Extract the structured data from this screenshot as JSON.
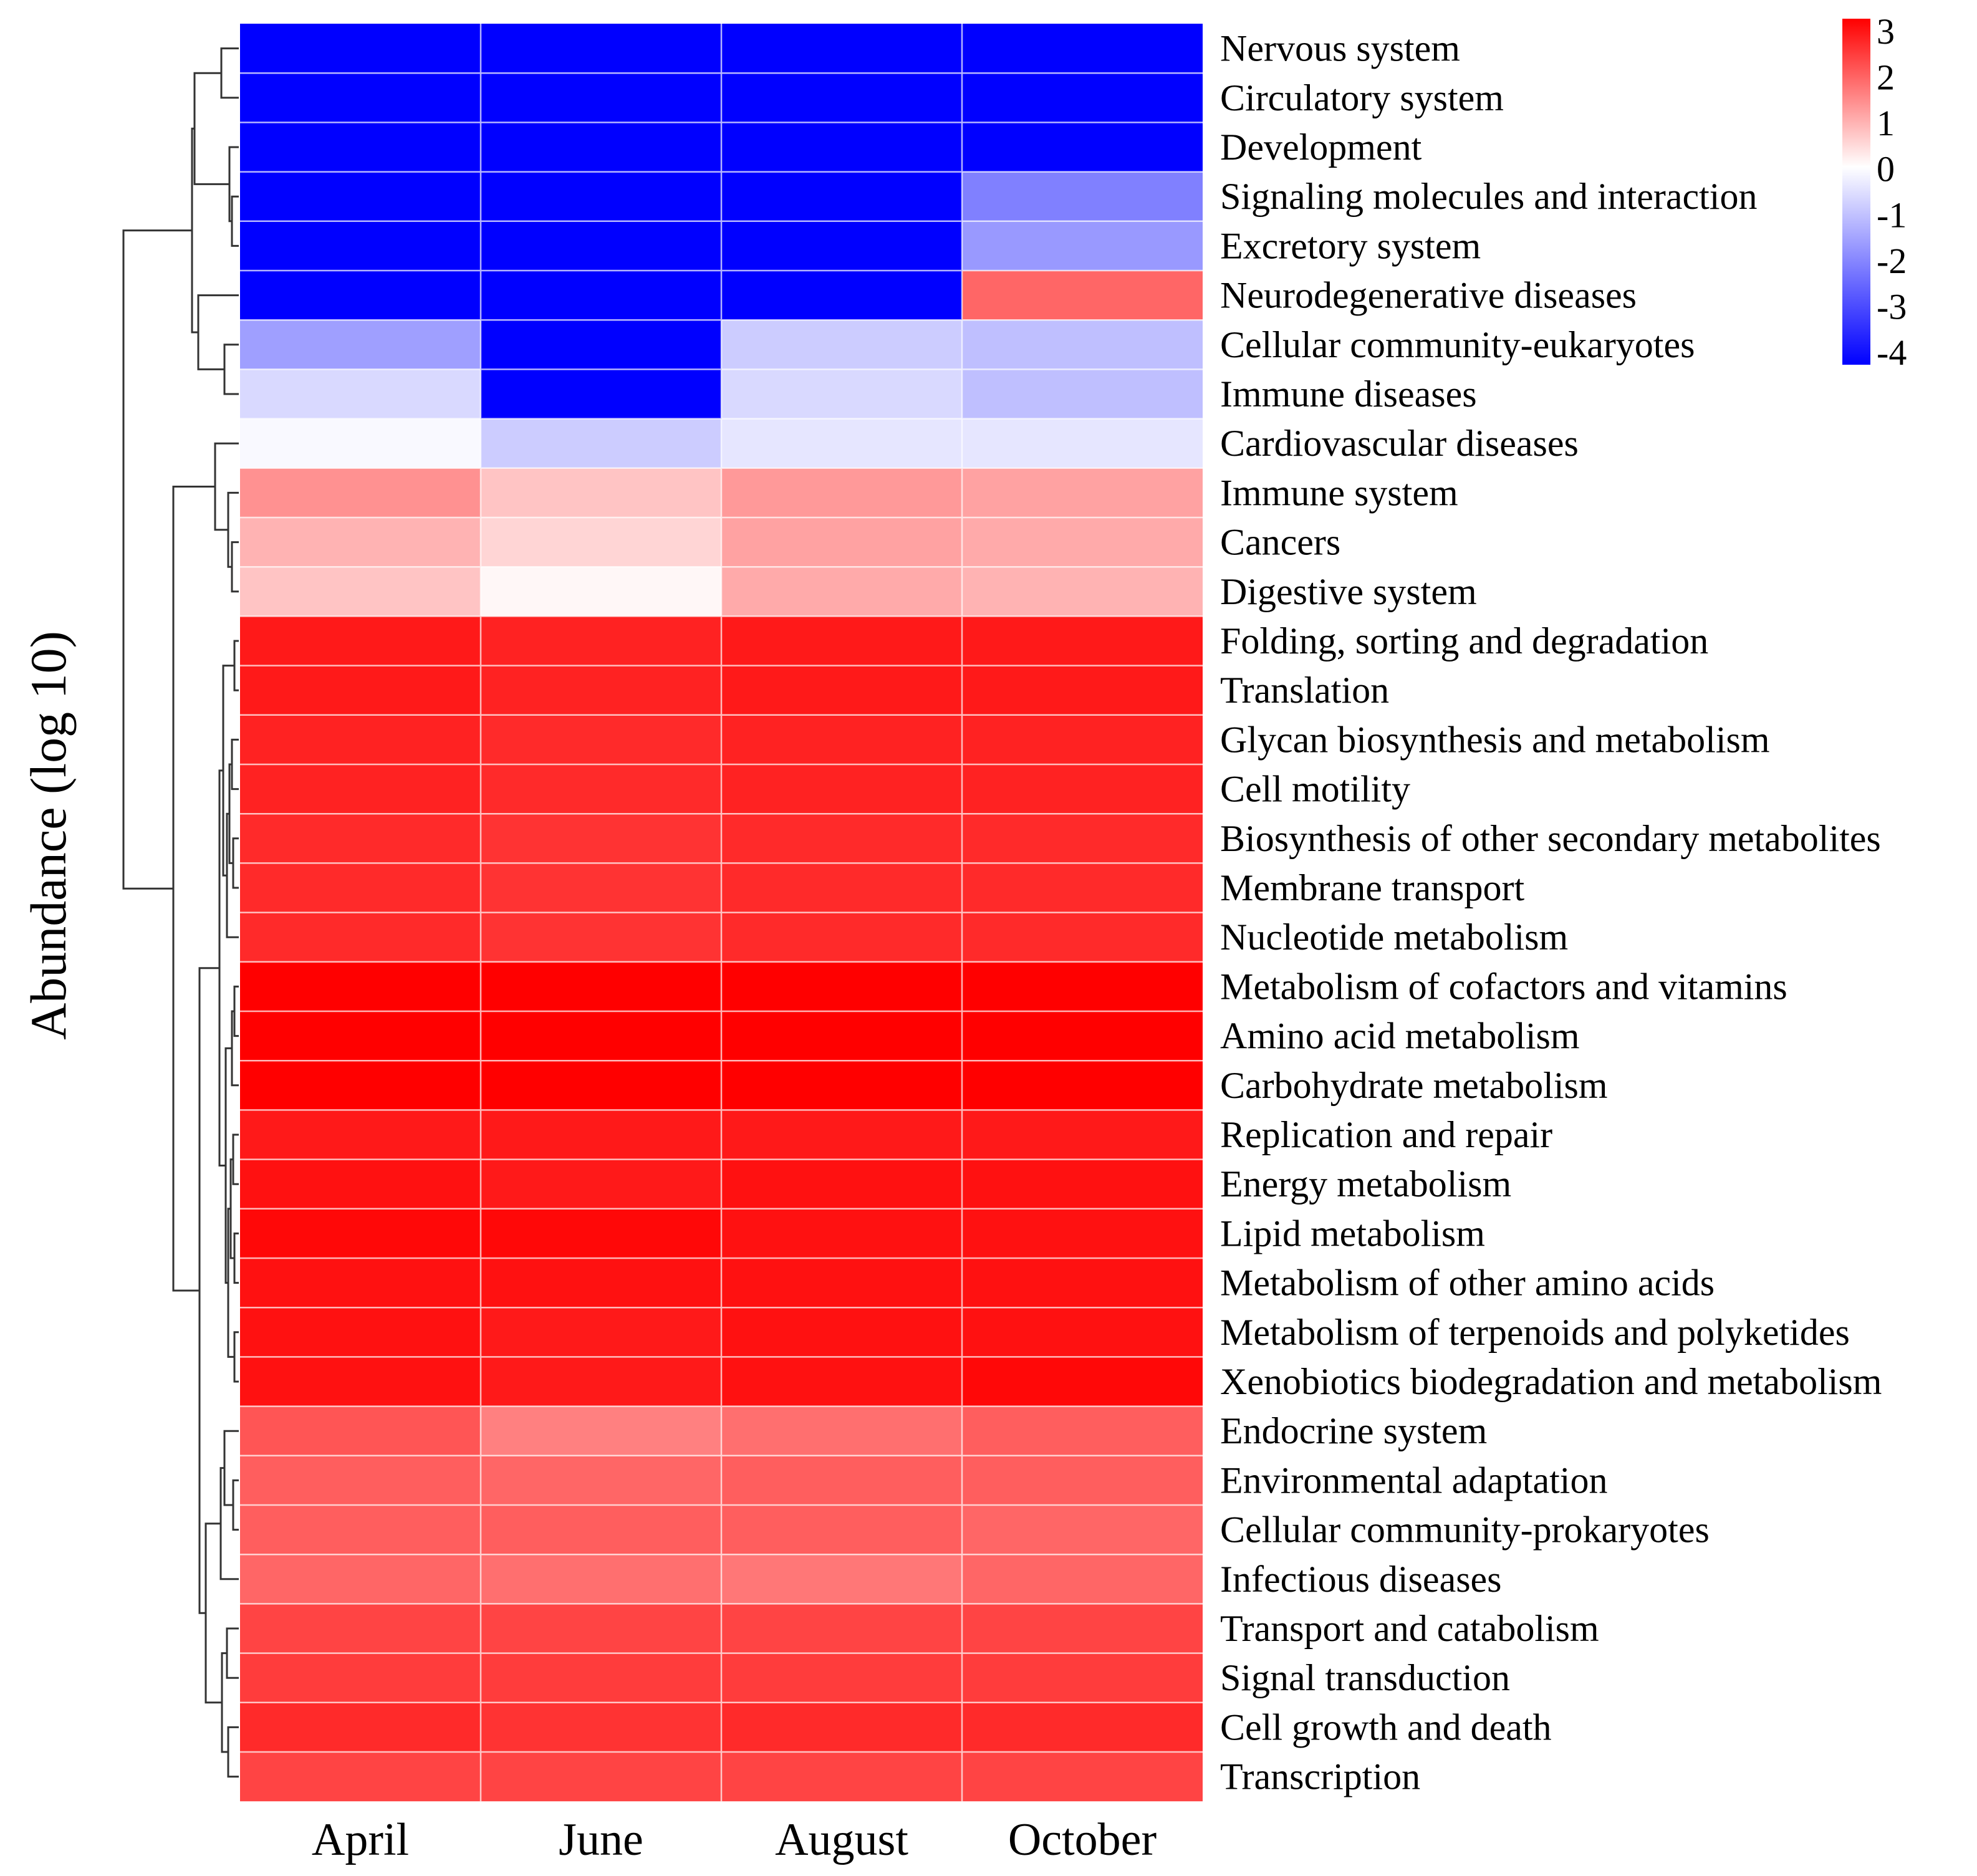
{
  "chart_data": {
    "type": "heatmap",
    "title": "",
    "ylabel": "Abundance (log 10)",
    "xlabel": "",
    "columns": [
      "April",
      "June",
      "August",
      "October"
    ],
    "rows": [
      "Nervous system",
      "Circulatory system",
      "Development",
      "Signaling molecules and interaction",
      "Excretory system",
      "Neurodegenerative diseases",
      "Cellular community-eukaryotes",
      "Immune diseases",
      "Cardiovascular diseases",
      "Immune system",
      "Cancers",
      "Digestive system",
      "Folding, sorting and degradation",
      "Translation",
      "Glycan biosynthesis and metabolism",
      "Cell motility",
      "Biosynthesis of other secondary metabolites",
      "Membrane transport",
      "Nucleotide metabolism",
      "Metabolism of cofactors and vitamins",
      "Amino acid metabolism",
      "Carbohydrate metabolism",
      "Replication and repair",
      "Energy metabolism",
      "Lipid metabolism",
      "Metabolism of other amino acids",
      "Metabolism of terpenoids and polyketides",
      "Xenobiotics biodegradation and metabolism",
      "Endocrine system",
      "Environmental adaptation",
      "Cellular community-prokaryotes",
      "Infectious diseases",
      "Transport and catabolism",
      "Signal transduction",
      "Cell growth and death",
      "Transcription"
    ],
    "values": [
      [
        -4,
        -4,
        -4,
        -4
      ],
      [
        -4,
        -4,
        -4,
        -4
      ],
      [
        -4,
        -4,
        -4,
        -4
      ],
      [
        -4,
        -4,
        -4,
        -2.0
      ],
      [
        -4,
        -4,
        -4,
        -1.6
      ],
      [
        -4,
        -4,
        -4,
        1.8
      ],
      [
        -1.5,
        -4,
        -0.8,
        -1.0
      ],
      [
        -0.6,
        -4,
        -0.6,
        -1.0
      ],
      [
        -0.1,
        -0.8,
        -0.4,
        -0.4
      ],
      [
        1.3,
        0.7,
        1.2,
        1.1
      ],
      [
        0.9,
        0.5,
        1.1,
        1.0
      ],
      [
        0.7,
        0.1,
        1.0,
        0.9
      ],
      [
        2.7,
        2.6,
        2.7,
        2.7
      ],
      [
        2.7,
        2.6,
        2.7,
        2.7
      ],
      [
        2.6,
        2.5,
        2.6,
        2.6
      ],
      [
        2.6,
        2.5,
        2.6,
        2.6
      ],
      [
        2.5,
        2.4,
        2.5,
        2.5
      ],
      [
        2.5,
        2.4,
        2.5,
        2.5
      ],
      [
        2.5,
        2.4,
        2.5,
        2.5
      ],
      [
        3.0,
        3.0,
        3.0,
        3.0
      ],
      [
        3.0,
        3.0,
        3.0,
        3.0
      ],
      [
        3.0,
        3.0,
        3.0,
        3.0
      ],
      [
        2.7,
        2.7,
        2.7,
        2.7
      ],
      [
        2.8,
        2.7,
        2.8,
        2.8
      ],
      [
        2.9,
        2.9,
        2.8,
        2.8
      ],
      [
        2.8,
        2.8,
        2.8,
        2.8
      ],
      [
        2.8,
        2.7,
        2.8,
        2.8
      ],
      [
        2.8,
        2.7,
        2.8,
        2.9
      ],
      [
        2.0,
        1.5,
        1.7,
        1.9
      ],
      [
        1.9,
        1.8,
        1.9,
        1.9
      ],
      [
        1.9,
        1.9,
        1.9,
        1.8
      ],
      [
        1.8,
        1.7,
        1.6,
        1.8
      ],
      [
        2.2,
        2.2,
        2.2,
        2.2
      ],
      [
        2.3,
        2.3,
        2.3,
        2.3
      ],
      [
        2.5,
        2.4,
        2.5,
        2.5
      ],
      [
        2.2,
        2.2,
        2.2,
        2.2
      ]
    ],
    "color_scale": {
      "min": -4,
      "max": 3,
      "ticks": [
        "3",
        "2",
        "1",
        "0",
        "-1",
        "-2",
        "-3",
        "-4"
      ],
      "low_color": "#0000ff",
      "mid_color": "#ffffff",
      "high_color": "#ff0000"
    },
    "row_dendrogram": true,
    "legend_position": "top-right"
  }
}
